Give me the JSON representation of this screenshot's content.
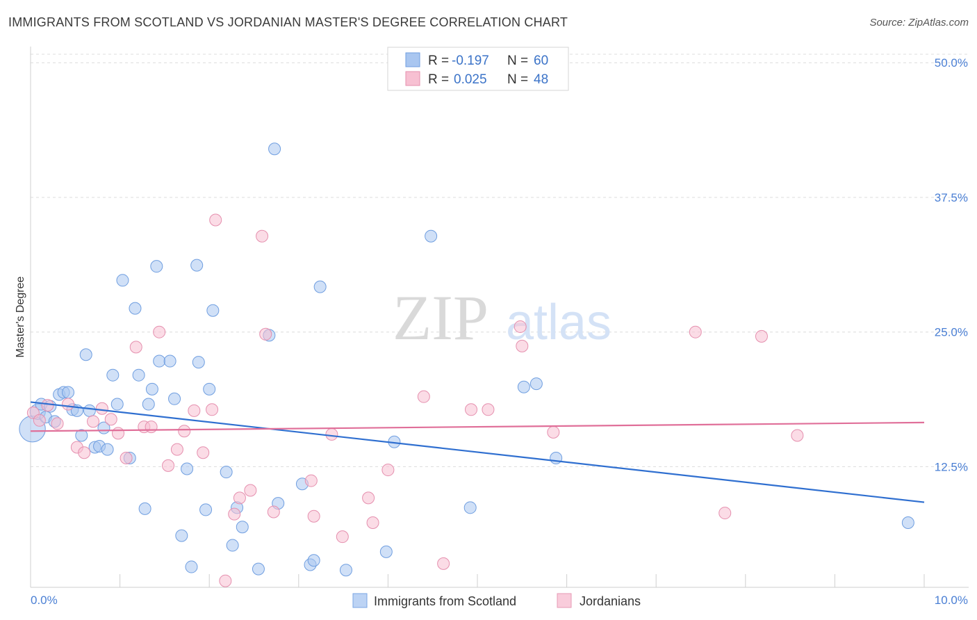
{
  "title": "IMMIGRANTS FROM SCOTLAND VS JORDANIAN MASTER'S DEGREE CORRELATION CHART",
  "source": "Source: ZipAtlas.com",
  "watermark": {
    "zip": "ZIP",
    "atlas": "atlas"
  },
  "legend": {
    "r_label": "R =",
    "n_label": "N =",
    "rows": [
      {
        "r": "-0.197",
        "n": "60",
        "color": "#a9c6f0",
        "stroke": "#6f9ee0"
      },
      {
        "r": "0.025",
        "n": "48",
        "color": "#f7c0d2",
        "stroke": "#e58fae"
      }
    ]
  },
  "bottom_legend": [
    {
      "label": "Immigrants from Scotland",
      "color": "#bcd3f4",
      "stroke": "#7aa5e3"
    },
    {
      "label": "Jordanians",
      "color": "#f9ccdb",
      "stroke": "#e69ab5"
    }
  ],
  "chart_data": {
    "type": "scatter",
    "ylabel": "Master's Degree",
    "xlim": [
      0,
      10
    ],
    "ylim": [
      1.3,
      51.5
    ],
    "x_tick_labels": [
      {
        "value": 0,
        "label": "0.0%"
      },
      {
        "value": 10,
        "label": "10.0%"
      }
    ],
    "y_ticks": [
      {
        "value": 12.5,
        "label": "12.5%"
      },
      {
        "value": 25,
        "label": "25.0%"
      },
      {
        "value": 37.5,
        "label": "37.5%"
      },
      {
        "value": 50,
        "label": "50.0%"
      }
    ],
    "grid": "horizontal dashed",
    "series": [
      {
        "name": "Immigrants from Scotland",
        "color": "#a9c6f0",
        "stroke": "#6f9ee0",
        "trend_color": "#2f6fd0",
        "trend": {
          "x0": 0,
          "y0": 18.5,
          "x1": 10,
          "y1": 9.2
        },
        "points": [
          [
            0.02,
            16.0,
            2.2
          ],
          [
            0.08,
            17.6,
            1.3
          ],
          [
            0.12,
            18.3,
            1.0
          ],
          [
            0.17,
            17.1,
            1.0
          ],
          [
            0.22,
            18.1,
            1.0
          ],
          [
            0.27,
            16.7,
            1.0
          ],
          [
            0.32,
            19.2,
            1.0
          ],
          [
            0.37,
            19.4,
            1.0
          ],
          [
            0.42,
            19.4,
            1.0
          ],
          [
            0.47,
            17.8,
            1.0
          ],
          [
            0.52,
            17.7,
            1.0
          ],
          [
            0.57,
            15.4,
            1.0
          ],
          [
            0.62,
            22.9,
            1.0
          ],
          [
            0.66,
            17.7,
            1.0
          ],
          [
            0.72,
            14.3,
            1.0
          ],
          [
            0.77,
            14.4,
            1.0
          ],
          [
            0.82,
            16.1,
            1.0
          ],
          [
            0.86,
            14.1,
            1.0
          ],
          [
            0.92,
            21.0,
            1.0
          ],
          [
            0.97,
            18.3,
            1.0
          ],
          [
            1.03,
            29.8,
            1.0
          ],
          [
            1.11,
            13.3,
            1.0
          ],
          [
            1.17,
            27.2,
            1.0
          ],
          [
            1.21,
            21.0,
            1.0
          ],
          [
            1.28,
            8.6,
            1.0
          ],
          [
            1.32,
            18.3,
            1.0
          ],
          [
            1.36,
            19.7,
            1.0
          ],
          [
            1.41,
            31.1,
            1.0
          ],
          [
            1.44,
            22.3,
            1.0
          ],
          [
            1.56,
            22.3,
            1.0
          ],
          [
            1.61,
            18.8,
            1.0
          ],
          [
            1.69,
            6.1,
            1.0
          ],
          [
            1.75,
            12.3,
            1.0
          ],
          [
            1.8,
            3.2,
            1.0
          ],
          [
            1.86,
            31.2,
            1.0
          ],
          [
            1.88,
            22.2,
            1.0
          ],
          [
            1.96,
            8.5,
            1.0
          ],
          [
            2.0,
            19.7,
            1.0
          ],
          [
            2.04,
            27.0,
            1.0
          ],
          [
            2.19,
            12.0,
            1.0
          ],
          [
            2.26,
            5.2,
            1.0
          ],
          [
            2.31,
            8.7,
            1.0
          ],
          [
            2.37,
            6.9,
            1.0
          ],
          [
            2.55,
            3.0,
            1.0
          ],
          [
            2.67,
            24.7,
            1.0
          ],
          [
            2.73,
            42.0,
            1.0
          ],
          [
            2.77,
            9.1,
            1.0
          ],
          [
            3.04,
            10.9,
            1.0
          ],
          [
            3.13,
            3.4,
            1.0
          ],
          [
            3.17,
            3.8,
            1.0
          ],
          [
            3.24,
            29.2,
            1.0
          ],
          [
            3.53,
            2.9,
            1.0
          ],
          [
            3.98,
            4.6,
            1.0
          ],
          [
            4.07,
            14.8,
            1.0
          ],
          [
            4.48,
            33.9,
            1.0
          ],
          [
            4.92,
            8.7,
            1.0
          ],
          [
            5.52,
            19.9,
            1.0
          ],
          [
            5.66,
            20.2,
            1.0
          ],
          [
            5.88,
            13.3,
            1.0
          ],
          [
            9.82,
            7.3,
            1.0
          ]
        ]
      },
      {
        "name": "Jordanians",
        "color": "#f7c0d2",
        "stroke": "#e58fae",
        "trend_color": "#e06f99",
        "trend": {
          "x0": 0,
          "y0": 15.8,
          "x1": 10,
          "y1": 16.6
        },
        "points": [
          [
            0.03,
            17.5,
            1.0
          ],
          [
            0.1,
            16.8,
            1.0
          ],
          [
            0.19,
            18.2,
            1.0
          ],
          [
            0.3,
            16.5,
            1.0
          ],
          [
            0.42,
            18.3,
            1.0
          ],
          [
            0.52,
            14.3,
            1.0
          ],
          [
            0.6,
            13.8,
            1.0
          ],
          [
            0.7,
            16.7,
            1.0
          ],
          [
            0.8,
            17.9,
            1.0
          ],
          [
            0.9,
            16.9,
            1.0
          ],
          [
            0.98,
            15.6,
            1.0
          ],
          [
            1.07,
            13.3,
            1.0
          ],
          [
            1.18,
            23.6,
            1.0
          ],
          [
            1.27,
            16.2,
            1.0
          ],
          [
            1.35,
            16.2,
            1.0
          ],
          [
            1.44,
            25.0,
            1.0
          ],
          [
            1.54,
            12.6,
            1.0
          ],
          [
            1.64,
            14.1,
            1.0
          ],
          [
            1.72,
            15.8,
            1.0
          ],
          [
            1.83,
            17.7,
            1.0
          ],
          [
            1.93,
            13.8,
            1.0
          ],
          [
            2.03,
            17.8,
            1.0
          ],
          [
            2.07,
            35.4,
            1.0
          ],
          [
            2.18,
            1.9,
            1.0
          ],
          [
            2.28,
            8.1,
            1.0
          ],
          [
            2.34,
            9.6,
            1.0
          ],
          [
            2.46,
            10.3,
            1.0
          ],
          [
            2.59,
            33.9,
            1.0
          ],
          [
            2.63,
            24.8,
            1.0
          ],
          [
            2.72,
            8.3,
            1.0
          ],
          [
            3.14,
            11.2,
            1.0
          ],
          [
            3.17,
            7.9,
            1.0
          ],
          [
            3.37,
            15.5,
            1.0
          ],
          [
            3.49,
            6.0,
            1.0
          ],
          [
            3.78,
            9.6,
            1.0
          ],
          [
            3.83,
            7.3,
            1.0
          ],
          [
            4.0,
            12.2,
            1.0
          ],
          [
            4.4,
            19.0,
            1.0
          ],
          [
            4.62,
            3.5,
            1.0
          ],
          [
            4.93,
            17.8,
            1.0
          ],
          [
            5.12,
            17.8,
            1.0
          ],
          [
            5.48,
            25.5,
            1.0
          ],
          [
            5.5,
            23.7,
            1.0
          ],
          [
            5.85,
            15.7,
            1.0
          ],
          [
            7.44,
            25.0,
            1.0
          ],
          [
            7.77,
            8.2,
            1.0
          ],
          [
            8.18,
            24.6,
            1.0
          ],
          [
            8.58,
            15.4,
            1.0
          ]
        ]
      }
    ]
  }
}
